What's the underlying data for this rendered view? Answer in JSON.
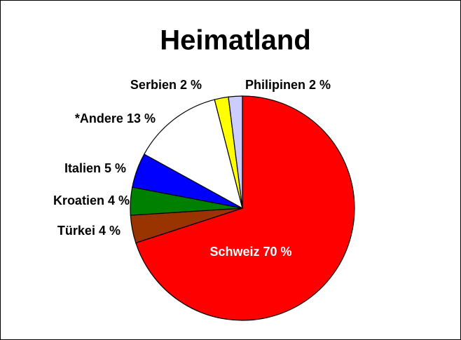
{
  "chart_data": {
    "type": "pie",
    "title": "Heimatland",
    "categories": [
      "Schweiz",
      "Türkei",
      "Kroatien",
      "Italien",
      "*Andere",
      "Serbien",
      "Philipinen"
    ],
    "values": [
      70,
      4,
      4,
      5,
      13,
      2,
      2
    ],
    "value_labels": [
      "70 %",
      "4 %",
      "4 %",
      "5 %",
      "13 %",
      "2 %",
      "2 %"
    ],
    "colors": [
      "#ff0000",
      "#993300",
      "#008000",
      "#0000ff",
      "#ffffff",
      "#ffff00",
      "#ccccff"
    ]
  }
}
